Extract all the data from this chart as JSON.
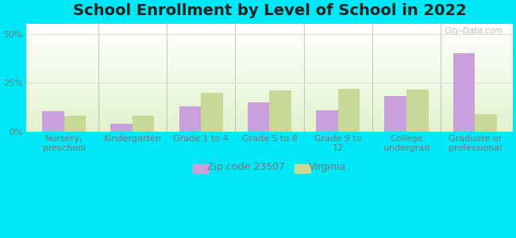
{
  "title": "School Enrollment by Level of School in 2022",
  "categories": [
    "Nursery,\npreschool",
    "Kindergarten",
    "Grade 1 to 4",
    "Grade 5 to 8",
    "Grade 9 to\n12",
    "College\nundergrad",
    "Graduate or\nprofessional"
  ],
  "zip_values": [
    10.5,
    4.0,
    13.0,
    15.0,
    11.0,
    18.0,
    40.0
  ],
  "va_values": [
    8.0,
    8.0,
    20.0,
    21.0,
    22.0,
    21.5,
    9.0
  ],
  "zip_color": "#c9a0dc",
  "va_color": "#c8d896",
  "background_color": "#00e8f8",
  "ylim": [
    0,
    55
  ],
  "yticks": [
    0,
    25,
    50
  ],
  "ytick_labels": [
    "0%",
    "25%",
    "50%"
  ],
  "bar_width": 0.32,
  "legend_zip_label": "Zip code 23507",
  "legend_va_label": "Virginia",
  "watermark": "City-Data.com",
  "title_fontsize": 14,
  "axis_fontsize": 8,
  "legend_fontsize": 9,
  "title_color": "#222222",
  "tick_color": "#777777",
  "separator_color": "#aaaaaa",
  "grid_color": "#dddddd"
}
